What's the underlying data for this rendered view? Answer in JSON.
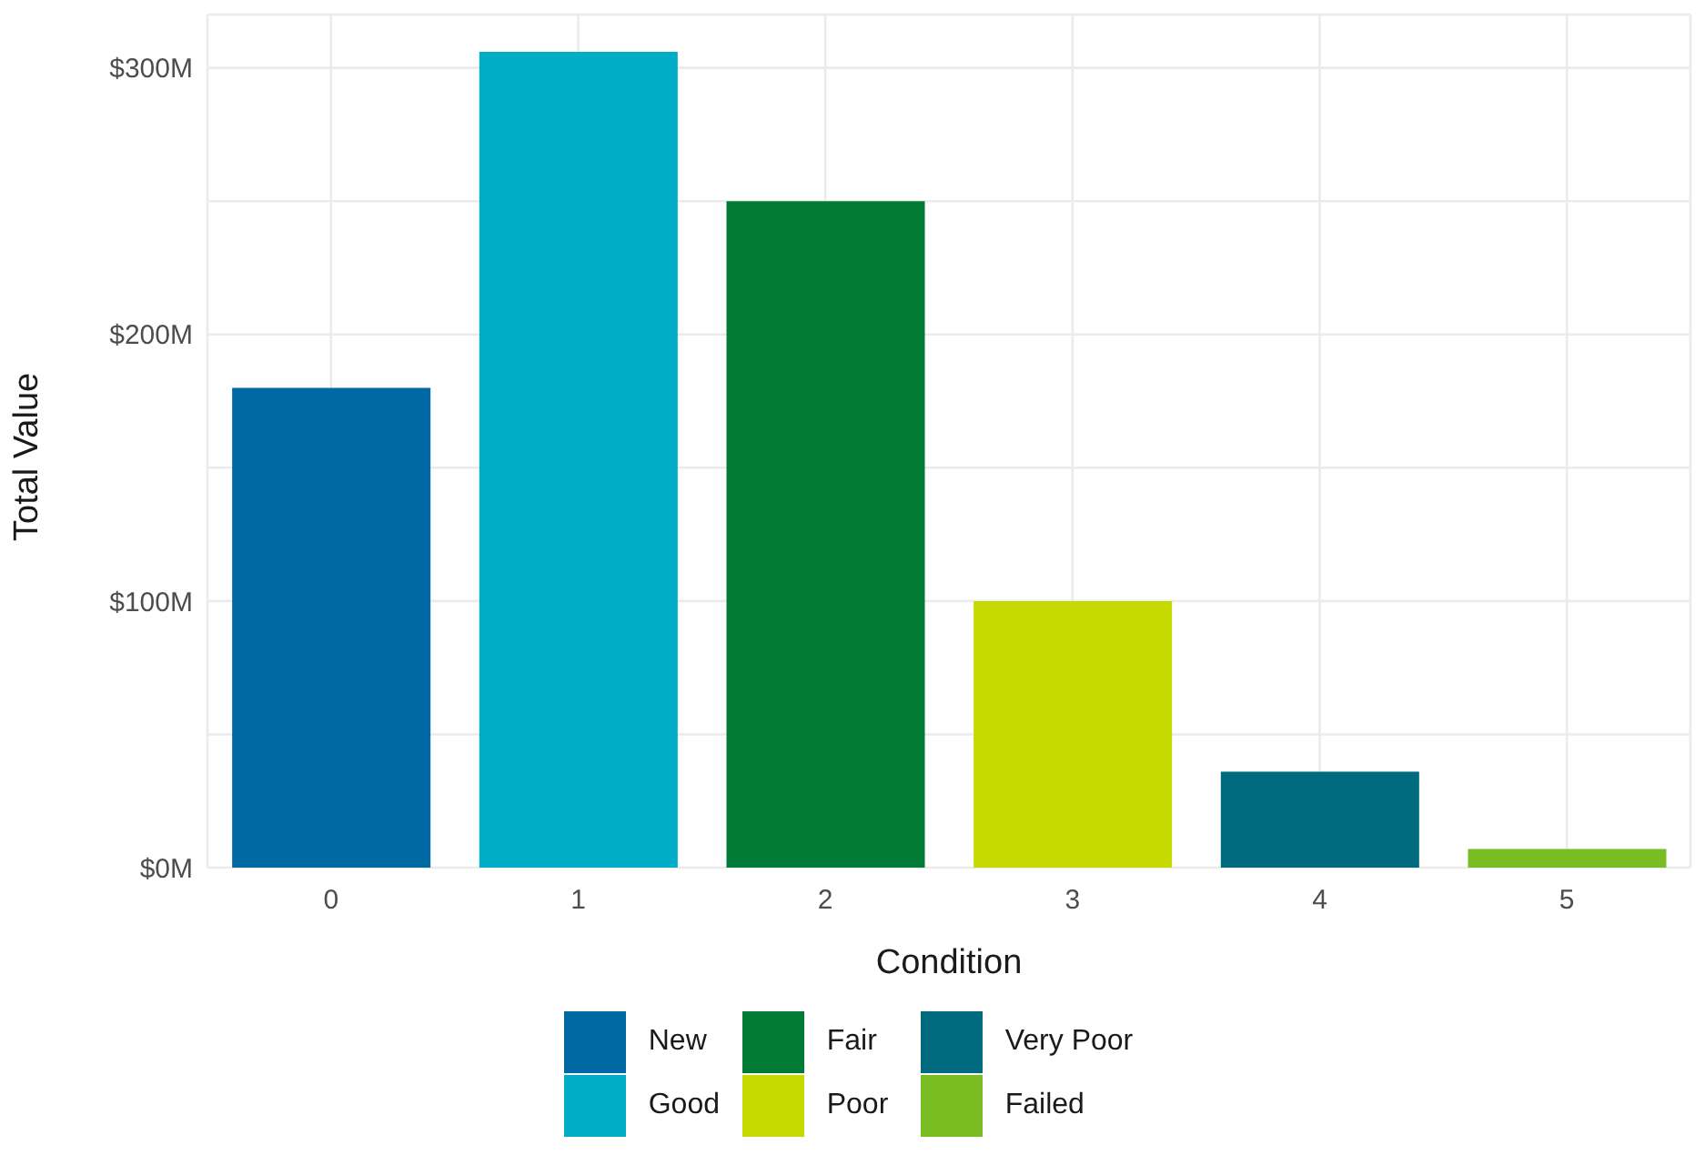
{
  "chart_data": {
    "type": "bar",
    "xlabel": "Condition",
    "ylabel": "Total Value",
    "categories": [
      "0",
      "1",
      "2",
      "3",
      "4",
      "5"
    ],
    "series": [
      {
        "name": "New",
        "color": "#0068a3",
        "values": [
          180,
          null,
          null,
          null,
          null,
          null
        ]
      },
      {
        "name": "Good",
        "color": "#00adc7",
        "values": [
          null,
          306,
          null,
          null,
          null,
          null
        ]
      },
      {
        "name": "Fair",
        "color": "#007b35",
        "values": [
          null,
          null,
          250,
          null,
          null,
          null
        ]
      },
      {
        "name": "Poor",
        "color": "#c6d900",
        "values": [
          null,
          null,
          null,
          100,
          null,
          null
        ]
      },
      {
        "name": "Very Poor",
        "color": "#006a7e",
        "values": [
          null,
          null,
          null,
          null,
          36,
          null
        ]
      },
      {
        "name": "Failed",
        "color": "#7abd23",
        "values": [
          null,
          null,
          null,
          null,
          null,
          7
        ]
      }
    ],
    "stacked": true,
    "ylim": [
      0,
      320
    ],
    "yticks": [
      {
        "value": 0,
        "label": "$0M"
      },
      {
        "value": 50,
        "label": null
      },
      {
        "value": 100,
        "label": "$100M"
      },
      {
        "value": 150,
        "label": null
      },
      {
        "value": 200,
        "label": "$200M"
      },
      {
        "value": 250,
        "label": null
      },
      {
        "value": 300,
        "label": "$300M"
      }
    ],
    "grid": true,
    "legend": "bottom"
  }
}
